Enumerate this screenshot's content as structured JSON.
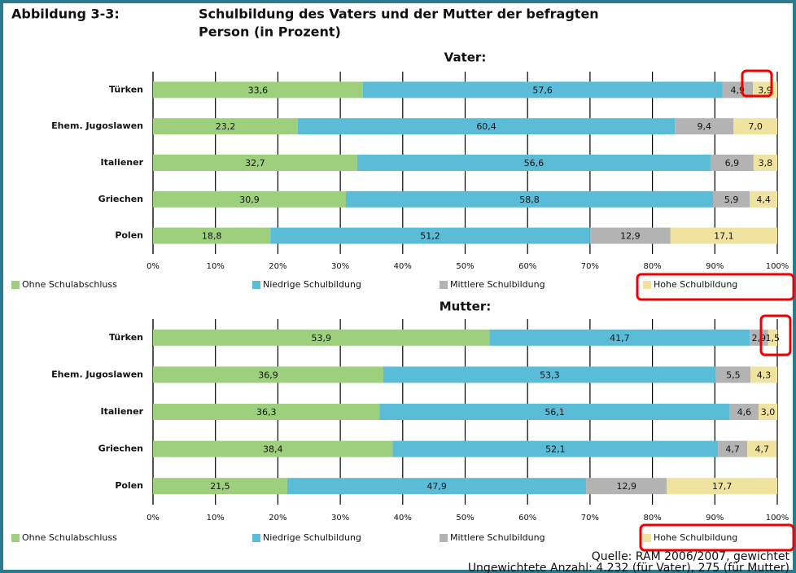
{
  "header": {
    "label": "Abbildung 3-3:",
    "title_line1": "Schulbildung des Vaters und der Mutter der befragten",
    "title_line2": "Person (in Prozent)"
  },
  "chart_data": [
    {
      "type": "bar",
      "orientation": "horizontal",
      "stacked": true,
      "title": "Vater:",
      "categories": [
        "Türken",
        "Ehem. Jugoslawen",
        "Italiener",
        "Griechen",
        "Polen"
      ],
      "series": [
        {
          "name": "Ohne Schulabschluss",
          "color": "#9dcf7d",
          "values": [
            33.6,
            23.2,
            32.7,
            30.9,
            18.8
          ],
          "value_labels": [
            "33,6",
            "23,2",
            "32,7",
            "30,9",
            "18,8"
          ]
        },
        {
          "name": "Niedrige Schulbildung",
          "color": "#5bbcd8",
          "values": [
            57.6,
            60.4,
            56.6,
            58.8,
            51.2
          ],
          "value_labels": [
            "57,6",
            "60,4",
            "56,6",
            "58,8",
            "51,2"
          ]
        },
        {
          "name": "Mittlere Schulbildung",
          "color": "#b3b3b3",
          "values": [
            4.9,
            9.4,
            6.9,
            5.9,
            12.9
          ],
          "value_labels": [
            "4,9",
            "9,4",
            "6,9",
            "5,9",
            "12,9"
          ]
        },
        {
          "name": "Hohe Schulbildung",
          "color": "#f0e3a0",
          "values": [
            3.9,
            7.0,
            3.8,
            4.4,
            17.1
          ],
          "value_labels": [
            "3,9",
            "7,0",
            "3,8",
            "4,4",
            "17,1"
          ]
        }
      ],
      "xlim": [
        0,
        100
      ],
      "xticks": [
        {
          "value": 0,
          "label": "0%"
        },
        {
          "value": 10,
          "label": "10%"
        },
        {
          "value": 20,
          "label": "20%"
        },
        {
          "value": 30,
          "label": "30%"
        },
        {
          "value": 40,
          "label": "40%"
        },
        {
          "value": 50,
          "label": "50%"
        },
        {
          "value": 60,
          "label": "60%"
        },
        {
          "value": 70,
          "label": "70%"
        },
        {
          "value": 80,
          "label": "80%"
        },
        {
          "value": 90,
          "label": "90%"
        },
        {
          "value": 100,
          "label": "100%"
        }
      ],
      "grid": true,
      "legend": "bottom"
    },
    {
      "type": "bar",
      "orientation": "horizontal",
      "stacked": true,
      "title": "Mutter:",
      "categories": [
        "Türken",
        "Ehem. Jugoslawen",
        "Italiener",
        "Griechen",
        "Polen"
      ],
      "series": [
        {
          "name": "Ohne Schulabschluss",
          "color": "#9dcf7d",
          "values": [
            53.9,
            36.9,
            36.3,
            38.4,
            21.5
          ],
          "value_labels": [
            "53,9",
            "36,9",
            "36,3",
            "38,4",
            "21,5"
          ]
        },
        {
          "name": "Niedrige Schulbildung",
          "color": "#5bbcd8",
          "values": [
            41.7,
            53.3,
            56.1,
            52.1,
            47.9
          ],
          "value_labels": [
            "41,7",
            "53,3",
            "56,1",
            "52,1",
            "47,9"
          ]
        },
        {
          "name": "Mittlere Schulbildung",
          "color": "#b3b3b3",
          "values": [
            2.9,
            5.5,
            4.6,
            4.7,
            12.9
          ],
          "value_labels": [
            "2,9",
            "5,5",
            "4,6",
            "4,7",
            "12,9"
          ]
        },
        {
          "name": "Hohe Schulbildung",
          "color": "#f0e3a0",
          "values": [
            1.5,
            4.3,
            3.0,
            4.7,
            17.7
          ],
          "value_labels": [
            "1,5",
            "4,3",
            "3,0",
            "4,7",
            "17,7"
          ]
        }
      ],
      "xlim": [
        0,
        100
      ],
      "xticks": [
        {
          "value": 0,
          "label": "0%"
        },
        {
          "value": 10,
          "label": "10%"
        },
        {
          "value": 20,
          "label": "20%"
        },
        {
          "value": 30,
          "label": "30%"
        },
        {
          "value": 40,
          "label": "40%"
        },
        {
          "value": 50,
          "label": "50%"
        },
        {
          "value": 60,
          "label": "60%"
        },
        {
          "value": 70,
          "label": "70%"
        },
        {
          "value": 80,
          "label": "80%"
        },
        {
          "value": 90,
          "label": "90%"
        },
        {
          "value": 100,
          "label": "100%"
        }
      ],
      "grid": true,
      "legend": "bottom"
    }
  ],
  "source": "Quelle: RAM 2006/2007, gewichtet",
  "note": "Ungewichtete Anzahl: 4.232 (für Vater), 275 (für Mutter)"
}
